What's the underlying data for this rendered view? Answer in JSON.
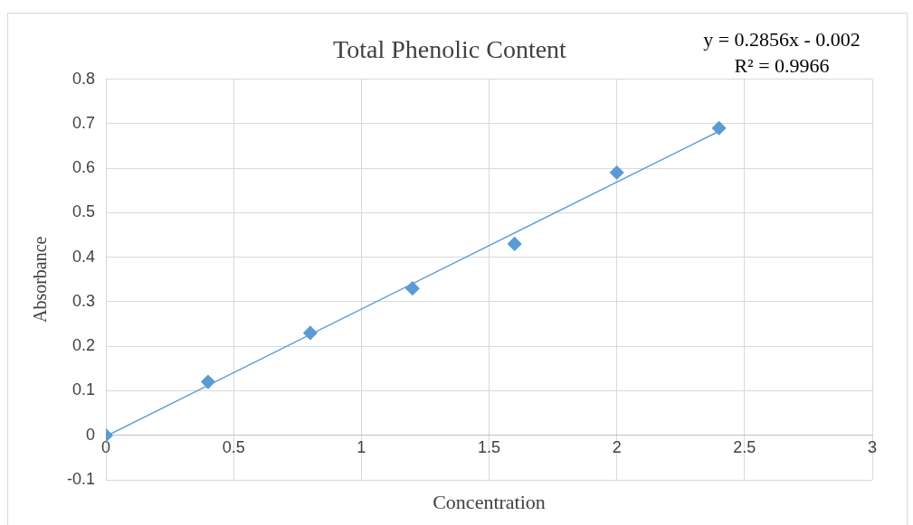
{
  "chart_data": {
    "type": "scatter",
    "title": "Total Phenolic Content",
    "xlabel": "Concentration",
    "ylabel": "Absorbance",
    "x": [
      0,
      0.4,
      0.8,
      1.2,
      1.6,
      2,
      2.4
    ],
    "series": [
      {
        "type": "scatter",
        "color": "#5b9bd5",
        "values": [
          0,
          0.12,
          0.23,
          0.33,
          0.43,
          0.59,
          0.69
        ],
        "marker": "diamond"
      },
      {
        "type": "line",
        "color": "#5b9bd5",
        "x": [
          0,
          2.4
        ],
        "values": [
          -0.002,
          0.683
        ],
        "marker": "none"
      }
    ],
    "xlim": [
      0,
      3
    ],
    "xticks": [
      0,
      0.5,
      1,
      1.5,
      2,
      2.5,
      3
    ],
    "ylim": [
      -0.1,
      0.8
    ],
    "yticks": [
      -0.1,
      0,
      0.1,
      0.2,
      0.3,
      0.4,
      0.5,
      0.6,
      0.7,
      0.8
    ],
    "grid": true,
    "legend": false,
    "annotations": [
      "y = 0.2856x - 0.002",
      "R² = 0.9966"
    ]
  }
}
